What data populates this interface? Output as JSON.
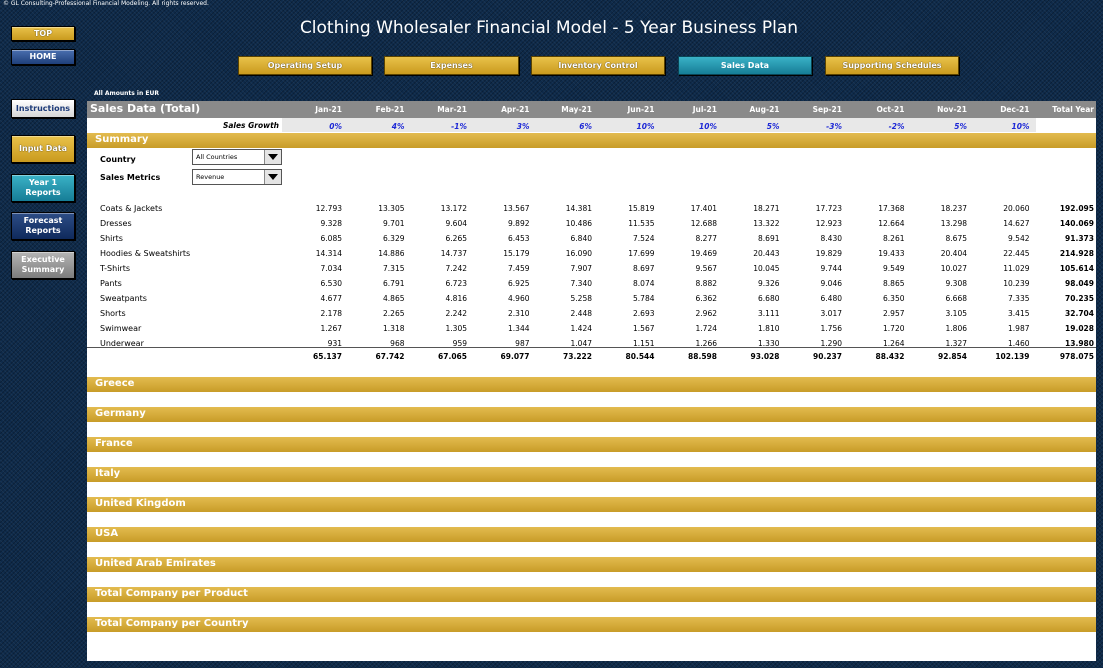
{
  "copyright": "© GL Consulting-Professional Financial Modeling. All rights reserved.",
  "title": "Clothing Wholesaler Financial Model - 5 Year Business Plan",
  "side_nav": {
    "top": "TOP",
    "home": "HOME",
    "instructions": "Instructions",
    "input_data": "Input Data",
    "year1_reports": "Year 1 Reports",
    "forecast_reports": "Forecast Reports",
    "executive_summary": "Executive Summary"
  },
  "top_nav": {
    "operating_setup": "Operating Setup",
    "expenses": "Expenses",
    "inventory_control": "Inventory Control",
    "sales_data": "Sales Data",
    "supporting_schedules": "Supporting Schedules"
  },
  "amounts_note": "All Amounts in  EUR",
  "sheet": {
    "header_title": "Sales Data (Total)",
    "months": [
      "Jan-21",
      "Feb-21",
      "Mar-21",
      "Apr-21",
      "May-21",
      "Jun-21",
      "Jul-21",
      "Aug-21",
      "Sep-21",
      "Oct-21",
      "Nov-21",
      "Dec-21"
    ],
    "total_year_label": "Total Year",
    "growth_label": "Sales Growth",
    "growth": [
      "0%",
      "4%",
      "-1%",
      "3%",
      "6%",
      "10%",
      "10%",
      "5%",
      "-3%",
      "-2%",
      "5%",
      "10%"
    ],
    "summary_label": "Summary",
    "country_label": "Country",
    "country_value": "All Countries",
    "metrics_label": "Sales Metrics",
    "metrics_value": "Revenue",
    "rows": [
      {
        "name": "Coats & Jackets",
        "values": [
          "12.793",
          "13.305",
          "13.172",
          "13.567",
          "14.381",
          "15.819",
          "17.401",
          "18.271",
          "17.723",
          "17.368",
          "18.237",
          "20.060"
        ],
        "total": "192.095"
      },
      {
        "name": "Dresses",
        "values": [
          "9.328",
          "9.701",
          "9.604",
          "9.892",
          "10.486",
          "11.535",
          "12.688",
          "13.322",
          "12.923",
          "12.664",
          "13.298",
          "14.627"
        ],
        "total": "140.069"
      },
      {
        "name": "Shirts",
        "values": [
          "6.085",
          "6.329",
          "6.265",
          "6.453",
          "6.840",
          "7.524",
          "8.277",
          "8.691",
          "8.430",
          "8.261",
          "8.675",
          "9.542"
        ],
        "total": "91.373"
      },
      {
        "name": "Hoodies & Sweatshirts",
        "values": [
          "14.314",
          "14.886",
          "14.737",
          "15.179",
          "16.090",
          "17.699",
          "19.469",
          "20.443",
          "19.829",
          "19.433",
          "20.404",
          "22.445"
        ],
        "total": "214.928"
      },
      {
        "name": "T-Shirts",
        "values": [
          "7.034",
          "7.315",
          "7.242",
          "7.459",
          "7.907",
          "8.697",
          "9.567",
          "10.045",
          "9.744",
          "9.549",
          "10.027",
          "11.029"
        ],
        "total": "105.614"
      },
      {
        "name": "Pants",
        "values": [
          "6.530",
          "6.791",
          "6.723",
          "6.925",
          "7.340",
          "8.074",
          "8.882",
          "9.326",
          "9.046",
          "8.865",
          "9.308",
          "10.239"
        ],
        "total": "98.049"
      },
      {
        "name": "Sweatpants",
        "values": [
          "4.677",
          "4.865",
          "4.816",
          "4.960",
          "5.258",
          "5.784",
          "6.362",
          "6.680",
          "6.480",
          "6.350",
          "6.668",
          "7.335"
        ],
        "total": "70.235"
      },
      {
        "name": "Shorts",
        "values": [
          "2.178",
          "2.265",
          "2.242",
          "2.310",
          "2.448",
          "2.693",
          "2.962",
          "3.111",
          "3.017",
          "2.957",
          "3.105",
          "3.415"
        ],
        "total": "32.704"
      },
      {
        "name": "Swimwear",
        "values": [
          "1.267",
          "1.318",
          "1.305",
          "1.344",
          "1.424",
          "1.567",
          "1.724",
          "1.810",
          "1.756",
          "1.720",
          "1.806",
          "1.987"
        ],
        "total": "19.028"
      },
      {
        "name": "Underwear",
        "values": [
          "931",
          "968",
          "959",
          "987",
          "1.047",
          "1.151",
          "1.266",
          "1.330",
          "1.290",
          "1.264",
          "1.327",
          "1.460"
        ],
        "total": "13.980"
      }
    ],
    "totals": [
      "65.137",
      "67.742",
      "67.065",
      "69.077",
      "73.222",
      "80.544",
      "88.598",
      "93.028",
      "90.237",
      "88.432",
      "92.854",
      "102.139"
    ],
    "grand_total": "978.075",
    "sections": [
      "Greece",
      "Germany",
      "France",
      "Italy",
      "United Kingdom",
      "USA",
      "United Arab Emirates",
      "Total Company per Product",
      "Total Company per Country"
    ]
  },
  "colors": {
    "gold": "#d4a93a",
    "header_gray": "#8a8a8a",
    "growth_blue": "#1d28d6",
    "background": "#0e2a4a"
  }
}
